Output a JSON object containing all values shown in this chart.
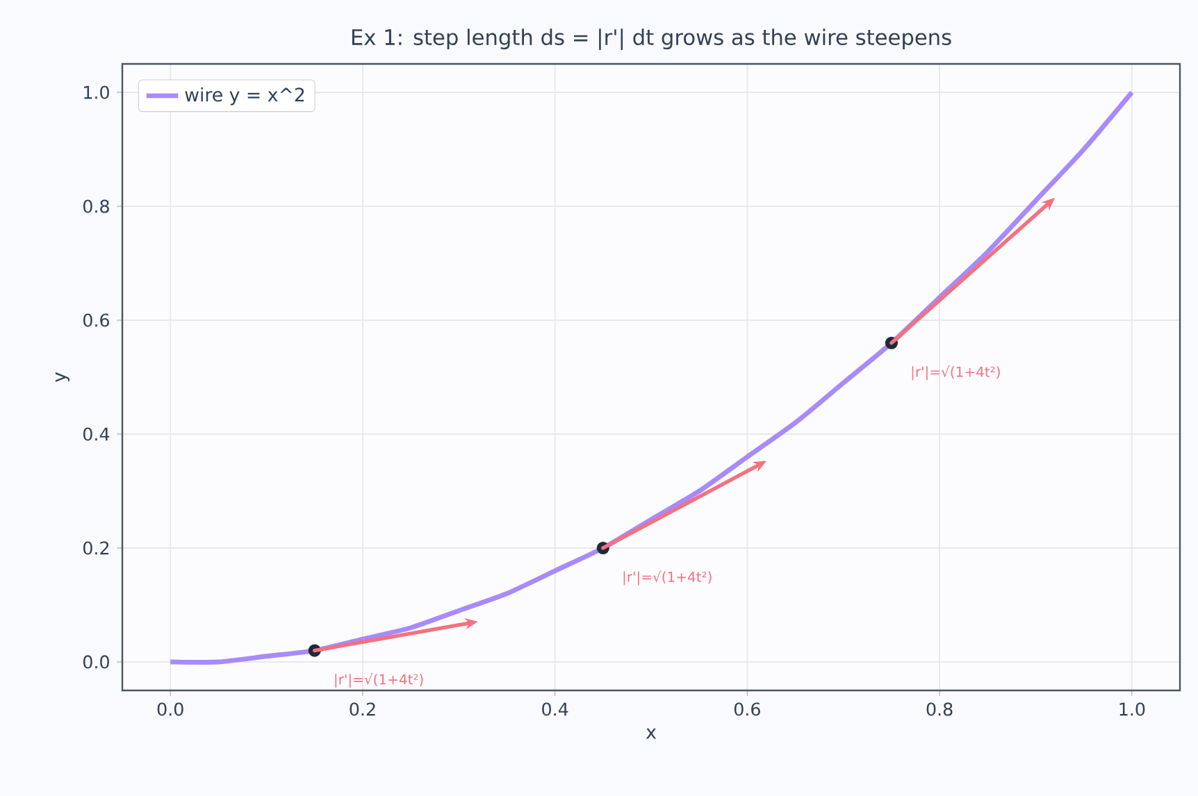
{
  "chart_data": {
    "type": "line",
    "title": "Ex 1: step length ds = |r'| dt grows as the wire steepens",
    "xlabel": "x",
    "ylabel": "y",
    "xlim": [
      -0.05,
      1.05
    ],
    "ylim": [
      -0.05,
      1.05
    ],
    "xticks": [
      {
        "value": 0,
        "label": "0.0"
      },
      0.2,
      0.4,
      0.6,
      0.8,
      {
        "value": 1,
        "label": "1.0"
      }
    ],
    "yticks": [
      {
        "value": 0,
        "label": "0.0"
      },
      0.2,
      0.4,
      0.6,
      0.8,
      {
        "value": 1,
        "label": "1.0"
      }
    ],
    "grid": true,
    "legend": "top left",
    "series": [
      {
        "name": "wire y = x^2",
        "color": "#a78bfa",
        "x": [
          0,
          0.05,
          0.1,
          0.15,
          0.2,
          0.25,
          0.3,
          0.35,
          0.4,
          0.45,
          0.5,
          0.55,
          0.6,
          0.65,
          0.7,
          0.75,
          0.8,
          0.85,
          0.9,
          0.95,
          1.0
        ],
        "values": [
          0,
          0,
          0.01,
          0.02,
          0.04,
          0.06,
          0.09,
          0.12,
          0.16,
          0.2,
          0.25,
          0.3,
          0.36,
          0.42,
          0.49,
          0.56,
          0.64,
          0.72,
          0.81,
          0.9,
          1.0
        ]
      },
      {
        "type": "scatter",
        "color": "#1e293b",
        "x": [
          0.15,
          0.45,
          0.75
        ],
        "values": [
          0.02,
          0.2,
          0.56
        ]
      }
    ],
    "annotations": [
      "|r'|=√(1+4t²)",
      "|r'|=√(1+4t²)",
      "|r'|=√(1+4t²)"
    ]
  }
}
